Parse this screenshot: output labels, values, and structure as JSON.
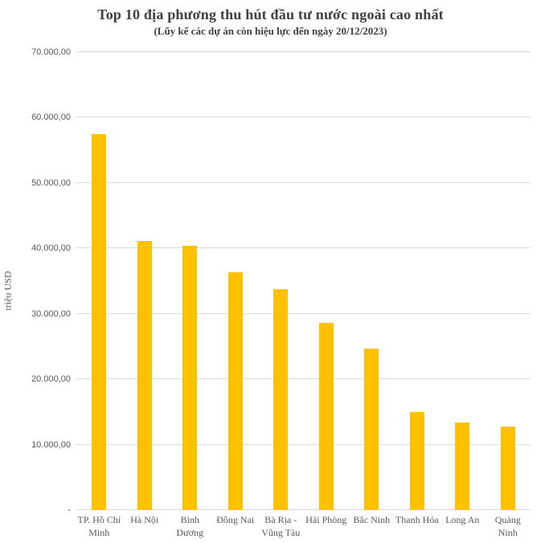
{
  "colors": {
    "bar": "#ffc000",
    "gridline": "#d9d9d9",
    "title_text": "#404040",
    "axis_text": "#595959",
    "background": "#ffffff"
  },
  "chart_data": {
    "type": "bar",
    "title": "Top 10 địa phương thu hút đầu tư nước ngoài cao nhất",
    "subtitle": "(Lũy kế các dự án còn hiệu lực đến ngày 20/12/2023)",
    "xlabel": "",
    "ylabel": "triệu USD",
    "ylim": [
      0,
      70000
    ],
    "ytick_interval": 10000,
    "ytick_labels": [
      "-",
      "10.000,00",
      "20.000,00",
      "30.000,00",
      "40.000,00",
      "50.000,00",
      "60.000,00",
      "70.000,00"
    ],
    "grid": true,
    "legend": false,
    "categories": [
      "TP. Hồ Chí Minh",
      "Hà Nội",
      "Bình Dương",
      "Đồng Nai",
      "Bà Rịa - Vũng Tàu",
      "Hải Phòng",
      "Bắc Ninh",
      "Thanh Hóa",
      "Long An",
      "Quảng Ninh"
    ],
    "category_label_lines": [
      [
        "TP. Hồ Chí",
        "Minh"
      ],
      [
        "Hà Nội"
      ],
      [
        "Bình",
        "Dương"
      ],
      [
        "Đồng Nai"
      ],
      [
        "Bà Rịa -",
        "Vũng Tàu"
      ],
      [
        "Hải Phòng"
      ],
      [
        "Bắc Ninh"
      ],
      [
        "Thanh Hóa"
      ],
      [
        "Long An"
      ],
      [
        "Quảng",
        "Ninh"
      ]
    ],
    "values": [
      57500,
      41100,
      40400,
      36400,
      33800,
      28600,
      24700,
      15000,
      13400,
      12800
    ]
  }
}
